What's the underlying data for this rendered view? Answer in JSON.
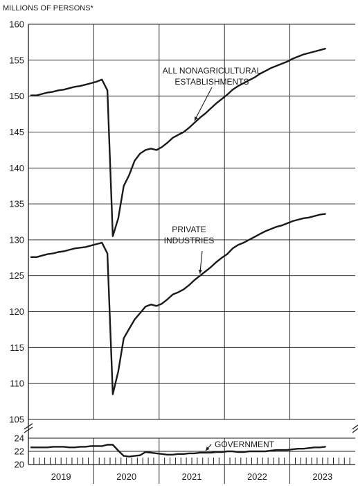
{
  "chart_data": {
    "type": "line",
    "unit_label": "MILLIONS OF PERSONS*",
    "x_categories": [
      "2019",
      "2020",
      "2021",
      "2022",
      "2023"
    ],
    "upper_panel": {
      "ylim": [
        105,
        160
      ],
      "yticks": [
        105,
        110,
        115,
        120,
        125,
        130,
        135,
        140,
        145,
        150,
        155,
        160
      ]
    },
    "lower_panel": {
      "ylim": [
        20,
        24
      ],
      "yticks": [
        20,
        22,
        24
      ]
    },
    "grid": true,
    "series": [
      {
        "name": "ALL NONAGRICULTURAL ESTABLISHMENTS",
        "label_lines": [
          "ALL NONAGRICULTURAL",
          "ESTABLISHMENTS"
        ],
        "panel": "upper",
        "x": [
          "2019-01",
          "2019-02",
          "2019-03",
          "2019-04",
          "2019-05",
          "2019-06",
          "2019-07",
          "2019-08",
          "2019-09",
          "2019-10",
          "2019-11",
          "2019-12",
          "2020-01",
          "2020-02",
          "2020-03",
          "2020-04",
          "2020-05",
          "2020-06",
          "2020-07",
          "2020-08",
          "2020-09",
          "2020-10",
          "2020-11",
          "2020-12",
          "2021-01",
          "2021-02",
          "2021-03",
          "2021-04",
          "2021-05",
          "2021-06",
          "2021-07",
          "2021-08",
          "2021-09",
          "2021-10",
          "2021-11",
          "2021-12",
          "2022-01",
          "2022-02",
          "2022-03",
          "2022-04",
          "2022-05",
          "2022-06",
          "2022-07",
          "2022-08",
          "2022-09",
          "2022-10",
          "2022-11",
          "2022-12",
          "2023-01",
          "2023-02",
          "2023-03",
          "2023-04",
          "2023-05",
          "2023-06",
          "2023-07"
        ],
        "values": [
          150.1,
          150.1,
          150.3,
          150.5,
          150.6,
          150.8,
          150.9,
          151.1,
          151.3,
          151.4,
          151.6,
          151.8,
          152.0,
          152.3,
          150.8,
          130.5,
          133.0,
          137.5,
          139.0,
          141.0,
          142.0,
          142.5,
          142.7,
          142.5,
          142.9,
          143.5,
          144.2,
          144.6,
          145.0,
          145.6,
          146.3,
          147.0,
          147.6,
          148.3,
          149.0,
          149.6,
          150.2,
          150.9,
          151.4,
          151.8,
          152.2,
          152.6,
          153.1,
          153.5,
          153.9,
          154.2,
          154.5,
          154.8,
          155.2,
          155.5,
          155.8,
          156.0,
          156.2,
          156.4,
          156.6
        ]
      },
      {
        "name": "PRIVATE INDUSTRIES",
        "label_lines": [
          "PRIVATE",
          "INDUSTRIES"
        ],
        "panel": "upper",
        "x": [
          "2019-01",
          "2019-02",
          "2019-03",
          "2019-04",
          "2019-05",
          "2019-06",
          "2019-07",
          "2019-08",
          "2019-09",
          "2019-10",
          "2019-11",
          "2019-12",
          "2020-01",
          "2020-02",
          "2020-03",
          "2020-04",
          "2020-05",
          "2020-06",
          "2020-07",
          "2020-08",
          "2020-09",
          "2020-10",
          "2020-11",
          "2020-12",
          "2021-01",
          "2021-02",
          "2021-03",
          "2021-04",
          "2021-05",
          "2021-06",
          "2021-07",
          "2021-08",
          "2021-09",
          "2021-10",
          "2021-11",
          "2021-12",
          "2022-01",
          "2022-02",
          "2022-03",
          "2022-04",
          "2022-05",
          "2022-06",
          "2022-07",
          "2022-08",
          "2022-09",
          "2022-10",
          "2022-11",
          "2022-12",
          "2023-01",
          "2023-02",
          "2023-03",
          "2023-04",
          "2023-05",
          "2023-06",
          "2023-07"
        ],
        "values": [
          127.6,
          127.6,
          127.8,
          128.0,
          128.1,
          128.3,
          128.4,
          128.6,
          128.8,
          128.9,
          129.0,
          129.2,
          129.4,
          129.6,
          128.1,
          108.5,
          111.7,
          116.3,
          117.6,
          118.9,
          119.8,
          120.7,
          121.0,
          120.8,
          121.1,
          121.7,
          122.4,
          122.7,
          123.1,
          123.7,
          124.4,
          125.0,
          125.6,
          126.2,
          126.9,
          127.5,
          128.0,
          128.8,
          129.3,
          129.6,
          130.0,
          130.4,
          130.8,
          131.2,
          131.5,
          131.8,
          132.0,
          132.3,
          132.6,
          132.8,
          133.0,
          133.1,
          133.3,
          133.5,
          133.6
        ]
      },
      {
        "name": "GOVERNMENT",
        "label_lines": [
          "GOVERNMENT"
        ],
        "panel": "lower",
        "x": [
          "2019-01",
          "2019-02",
          "2019-03",
          "2019-04",
          "2019-05",
          "2019-06",
          "2019-07",
          "2019-08",
          "2019-09",
          "2019-10",
          "2019-11",
          "2019-12",
          "2020-01",
          "2020-02",
          "2020-03",
          "2020-04",
          "2020-05",
          "2020-06",
          "2020-07",
          "2020-08",
          "2020-09",
          "2020-10",
          "2020-11",
          "2020-12",
          "2021-01",
          "2021-02",
          "2021-03",
          "2021-04",
          "2021-05",
          "2021-06",
          "2021-07",
          "2021-08",
          "2021-09",
          "2021-10",
          "2021-11",
          "2021-12",
          "2022-01",
          "2022-02",
          "2022-03",
          "2022-04",
          "2022-05",
          "2022-06",
          "2022-07",
          "2022-08",
          "2022-09",
          "2022-10",
          "2022-11",
          "2022-12",
          "2023-01",
          "2023-02",
          "2023-03",
          "2023-04",
          "2023-05",
          "2023-06",
          "2023-07"
        ],
        "values": [
          22.6,
          22.6,
          22.6,
          22.6,
          22.7,
          22.7,
          22.7,
          22.6,
          22.6,
          22.7,
          22.7,
          22.8,
          22.8,
          22.8,
          23.0,
          23.0,
          22.1,
          21.3,
          21.2,
          21.3,
          21.4,
          21.9,
          21.8,
          21.7,
          21.6,
          21.5,
          21.5,
          21.6,
          21.6,
          21.7,
          21.7,
          21.8,
          21.8,
          21.8,
          21.9,
          21.9,
          22.0,
          22.0,
          21.9,
          21.9,
          22.0,
          22.0,
          22.0,
          22.0,
          22.1,
          22.2,
          22.2,
          22.2,
          22.3,
          22.4,
          22.4,
          22.5,
          22.6,
          22.6,
          22.7
        ]
      }
    ]
  }
}
